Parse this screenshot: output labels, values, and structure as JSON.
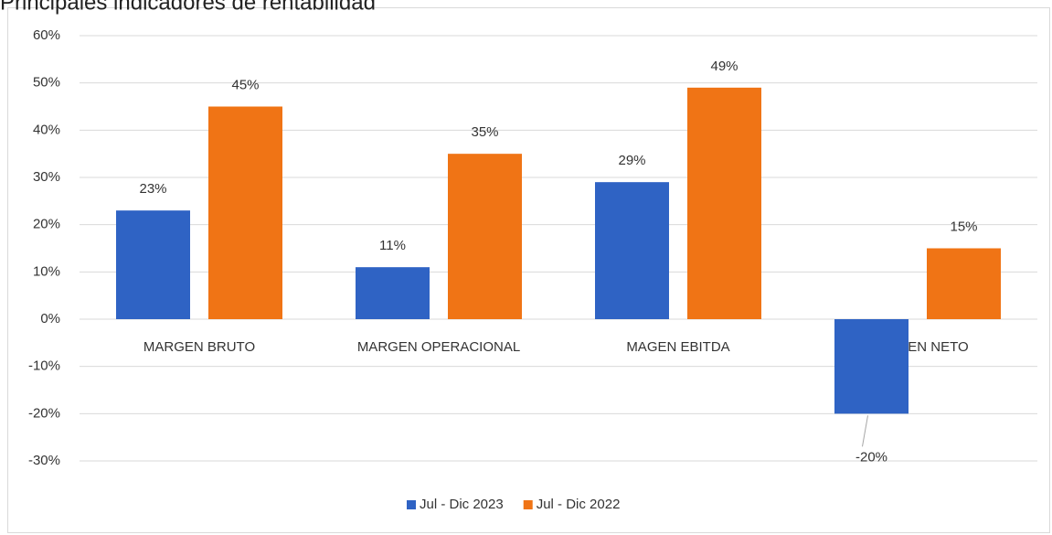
{
  "chart_data": {
    "type": "bar",
    "title": "Principales indicadores de rentabilidad",
    "categories": [
      "MARGEN BRUTO",
      "MARGEN OPERACIONAL",
      "MAGEN EBITDA",
      "MARGEN NETO"
    ],
    "series": [
      {
        "name": "Jul - Dic 2023",
        "color": "#2f63c4",
        "values": [
          23,
          11,
          29,
          -20
        ],
        "value_labels": [
          "23%",
          "11%",
          "29%",
          "-20%"
        ]
      },
      {
        "name": "Jul - Dic 2022",
        "color": "#f07415",
        "values": [
          45,
          35,
          49,
          15
        ],
        "value_labels": [
          "45%",
          "35%",
          "49%",
          "15%"
        ]
      }
    ],
    "ylim": [
      -30,
      60
    ],
    "yticks": [
      {
        "value": -30,
        "label": "-30%"
      },
      {
        "value": -20,
        "label": "-20%"
      },
      {
        "value": -10,
        "label": "-10%"
      },
      {
        "value": 0,
        "label": "0%"
      },
      {
        "value": 10,
        "label": "10%"
      },
      {
        "value": 20,
        "label": "20%"
      },
      {
        "value": 30,
        "label": "30%"
      },
      {
        "value": 40,
        "label": "40%"
      },
      {
        "value": 50,
        "label": "50%"
      },
      {
        "value": 60,
        "label": "60%"
      }
    ],
    "grid": true,
    "legend": "bottom"
  }
}
